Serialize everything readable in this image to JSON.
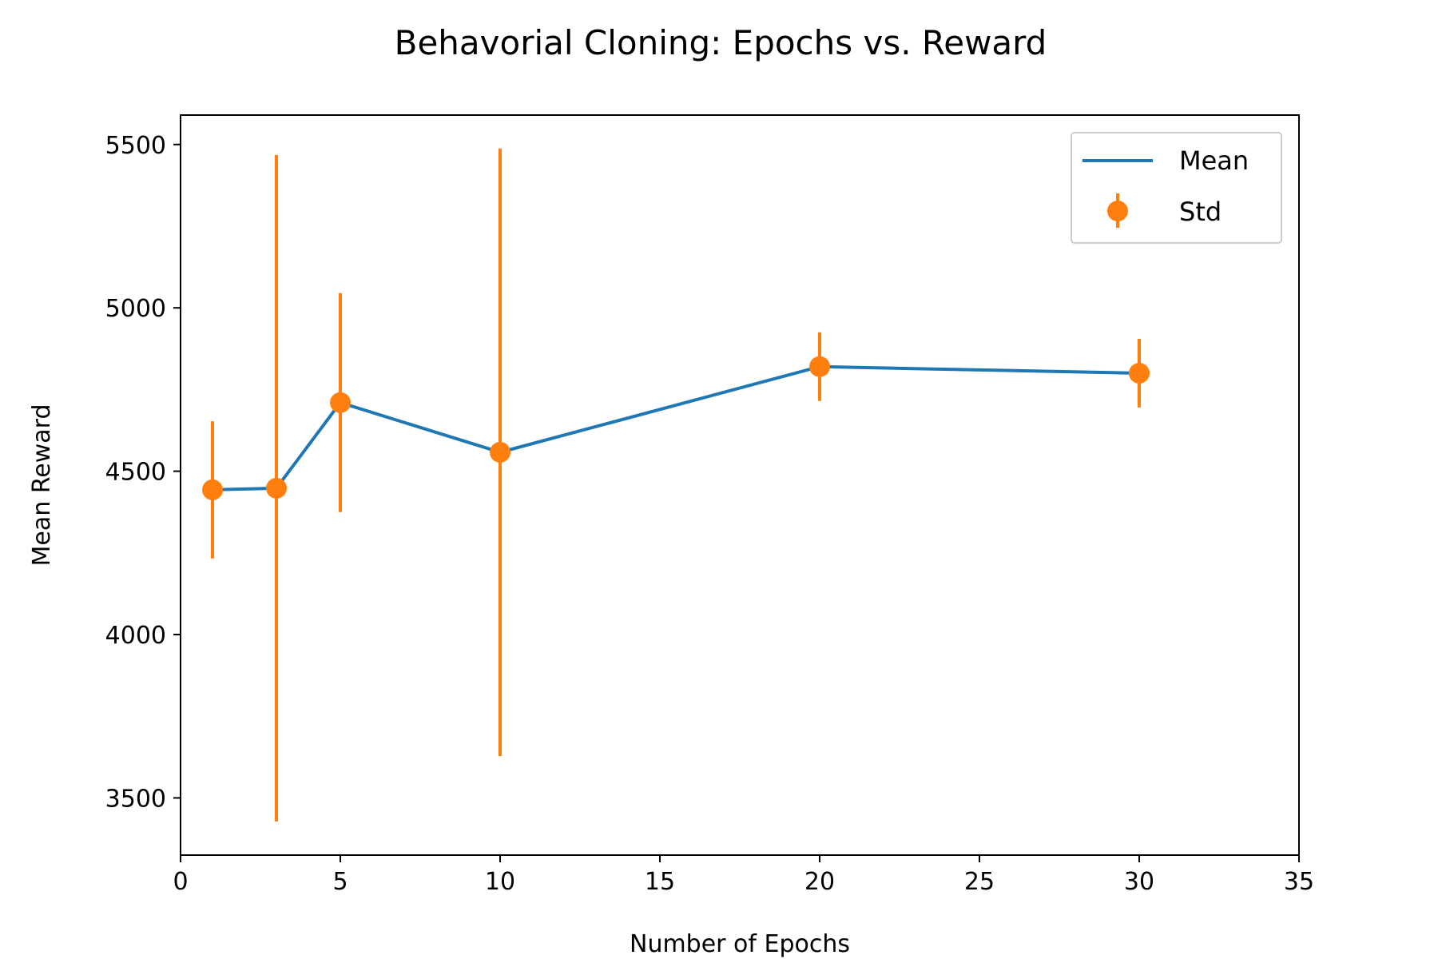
{
  "chart_data": {
    "type": "line",
    "title": "Behavorial Cloning: Epochs vs. Reward",
    "xlabel": "Number of Epochs",
    "ylabel": "Mean Reward",
    "xlim": [
      0,
      35
    ],
    "ylim": [
      3325,
      5590
    ],
    "x_ticks": [
      0,
      5,
      10,
      15,
      20,
      25,
      30,
      35
    ],
    "y_ticks": [
      3500,
      4000,
      4500,
      5000,
      5500
    ],
    "grid": false,
    "legend_position": "top-right",
    "x": [
      1,
      3,
      5,
      10,
      20,
      30
    ],
    "series": [
      {
        "name": "Mean",
        "kind": "line",
        "color": "#1f77b4",
        "values": [
          4443,
          4448,
          4710,
          4558,
          4820,
          4800
        ]
      },
      {
        "name": "Std",
        "kind": "errorbar",
        "color": "#ff7f0e",
        "values": [
          4443,
          4448,
          4710,
          4558,
          4820,
          4800
        ],
        "err": [
          210,
          1020,
          335,
          930,
          105,
          105
        ]
      }
    ]
  }
}
